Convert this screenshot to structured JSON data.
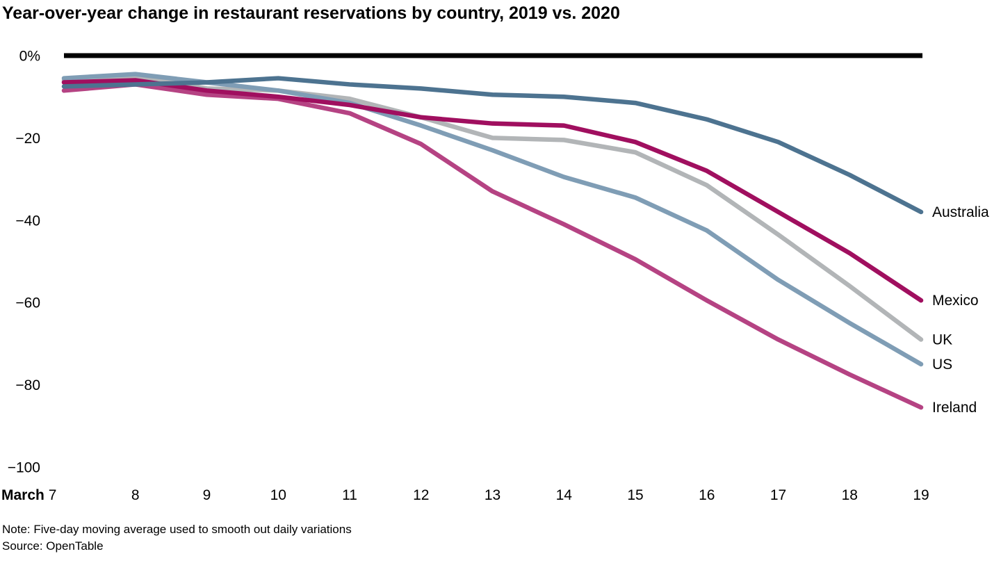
{
  "note": "Note: Five-day moving average used to smooth out daily variations",
  "source": "Source: OpenTable",
  "chart_data": {
    "type": "line",
    "title": "Year-over-year change in restaurant reservations by country, 2019 vs. 2020",
    "unit": "%",
    "grid": false,
    "legend_position": "right-of-line-ends",
    "x_axis": {
      "month_prefix": "March",
      "ticks": [
        "7",
        "8",
        "9",
        "10",
        "11",
        "12",
        "13",
        "14",
        "15",
        "16",
        "17",
        "18",
        "19"
      ]
    },
    "y_axis": {
      "tick_labels": [
        "0%",
        "−20",
        "−40",
        "−60",
        "−80",
        "−100"
      ],
      "tick_values": [
        0,
        -20,
        -40,
        -60,
        -80,
        -100
      ],
      "range": [
        0,
        -100
      ]
    },
    "zero_line_color": "#000000",
    "label_color": "#000000",
    "series": [
      {
        "name": "Australia",
        "color": "#4d7390",
        "values": [
          -7.5,
          -7,
          -6.5,
          -5.5,
          -7,
          -8,
          -9.5,
          -10,
          -11.5,
          -15.5,
          -21,
          -29,
          -38
        ]
      },
      {
        "name": "Mexico",
        "color": "#a00f5f",
        "values": [
          -6.5,
          -6,
          -8.5,
          -10,
          -12,
          -15,
          -16.5,
          -17,
          -21,
          -28,
          -38,
          -48,
          -59.5
        ]
      },
      {
        "name": "UK",
        "color": "#b2b5b7",
        "values": [
          -6,
          -5,
          -8,
          -8.5,
          -10.5,
          -15,
          -20,
          -20.5,
          -23.5,
          -31.5,
          -43.5,
          -56,
          -69
        ]
      },
      {
        "name": "US",
        "color": "#7f9db5",
        "values": [
          -5.5,
          -4.5,
          -6.5,
          -8.5,
          -11.5,
          -17,
          -23,
          -29.5,
          -34.5,
          -42.5,
          -54.5,
          -65,
          -75
        ]
      },
      {
        "name": "Ireland",
        "color": "#b54383",
        "values": [
          -8.5,
          -7,
          -9.5,
          -10.5,
          -14,
          -21.5,
          -33,
          -41,
          -49.5,
          -59.5,
          -69,
          -77.5,
          -85.5
        ]
      }
    ],
    "draw_order": [
      2,
      3,
      4,
      1,
      0
    ]
  }
}
